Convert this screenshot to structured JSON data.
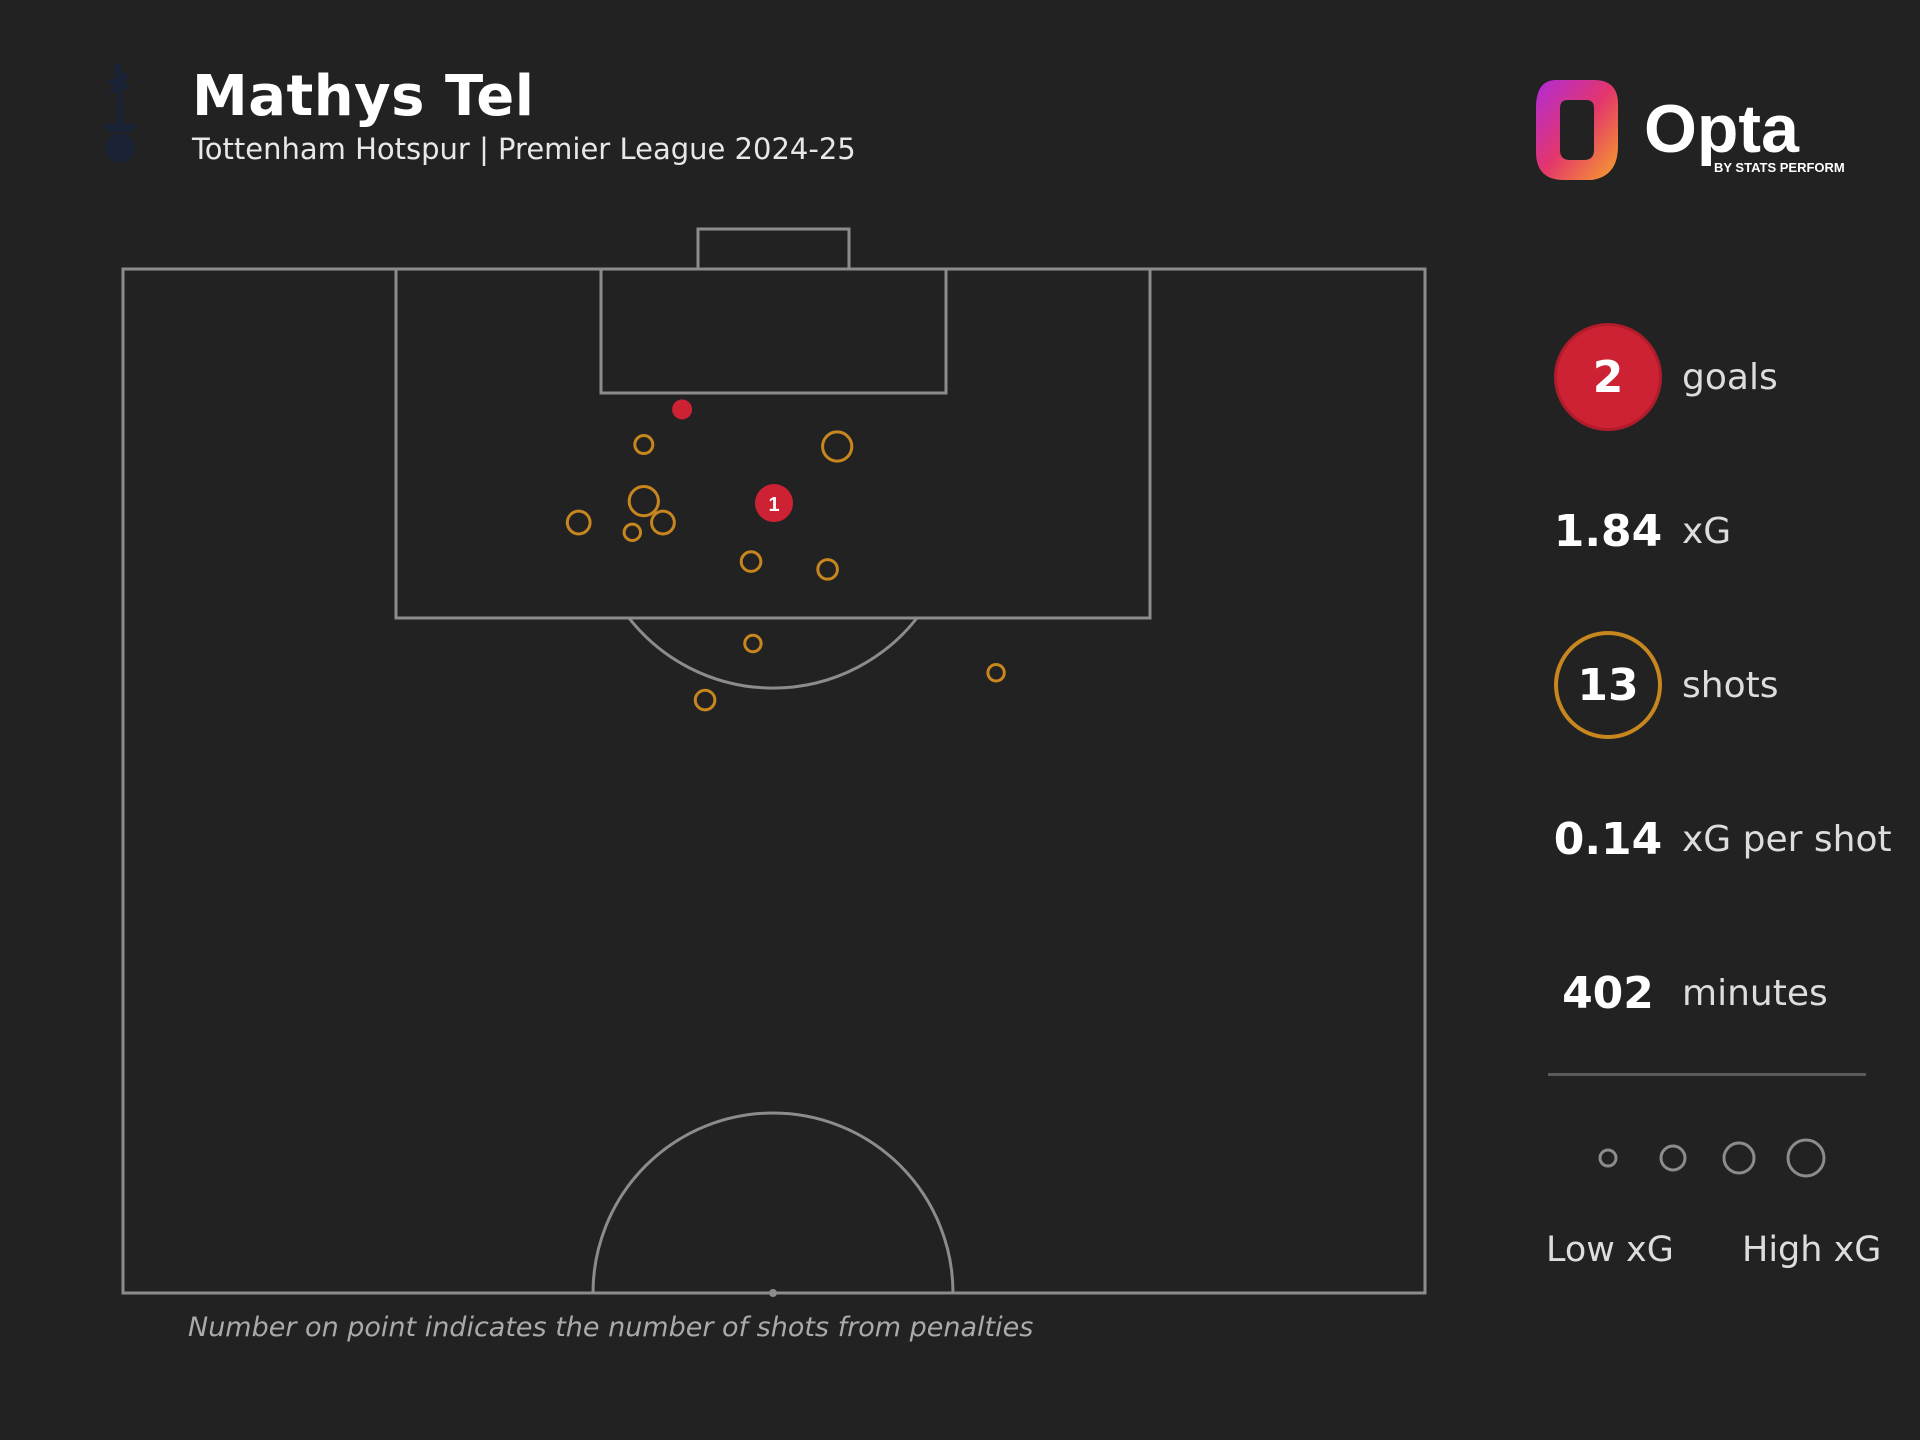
{
  "header": {
    "player_name": "Mathys Tel",
    "subtitle": "Tottenham Hotspur | Premier League 2024-25"
  },
  "brand": {
    "name": "Opta",
    "tagline": "BY STATS PERFORM"
  },
  "stats": {
    "goals": {
      "value": "2",
      "label": "goals"
    },
    "xg": {
      "value": "1.84",
      "label": "xG"
    },
    "shots": {
      "value": "13",
      "label": "shots"
    },
    "xg_per_shot": {
      "value": "0.14",
      "label": "xG per shot"
    },
    "minutes": {
      "value": "402",
      "label": "minutes"
    }
  },
  "legend": {
    "low_label": "Low xG",
    "high_label": "High xG"
  },
  "footnote": "Number on point indicates the number of shots from penalties",
  "colors": {
    "background": "#222222",
    "pitch_lines": "#8c8c8c",
    "goal": "#cc2233",
    "shot": "#c8861e",
    "legend_marker": "#8c8c8c"
  },
  "icons": {
    "crest": "tottenham-crest-icon",
    "logo": "opta-logo"
  },
  "chart_data": {
    "type": "scatter",
    "description_units": "x = distance across pitch width from left touchline (m, 0-68); y = distance from goal line (m)",
    "xlim": [
      0,
      68
    ],
    "ylim": [
      0,
      52.5
    ],
    "shots": [
      {
        "x": 29.2,
        "y": 7.2,
        "outcome": "goal",
        "penalties": null
      },
      {
        "x": 34.0,
        "y": 12.0,
        "outcome": "goal",
        "penalties": "1"
      },
      {
        "x": 27.2,
        "y": 9.0,
        "outcome": "shot",
        "xg": 0.05
      },
      {
        "x": 37.3,
        "y": 9.1,
        "outcome": "shot",
        "xg": 0.12
      },
      {
        "x": 27.2,
        "y": 11.9,
        "outcome": "shot",
        "xg": 0.12
      },
      {
        "x": 23.8,
        "y": 13.0,
        "outcome": "shot",
        "xg": 0.08
      },
      {
        "x": 26.6,
        "y": 13.5,
        "outcome": "shot",
        "xg": 0.04
      },
      {
        "x": 28.2,
        "y": 13.0,
        "outcome": "shot",
        "xg": 0.08
      },
      {
        "x": 32.8,
        "y": 15.0,
        "outcome": "shot",
        "xg": 0.06
      },
      {
        "x": 36.8,
        "y": 15.4,
        "outcome": "shot",
        "xg": 0.06
      },
      {
        "x": 32.9,
        "y": 19.2,
        "outcome": "shot",
        "xg": 0.04
      },
      {
        "x": 45.6,
        "y": 20.7,
        "outcome": "shot",
        "xg": 0.04
      },
      {
        "x": 30.4,
        "y": 22.1,
        "outcome": "shot",
        "xg": 0.06
      }
    ]
  }
}
